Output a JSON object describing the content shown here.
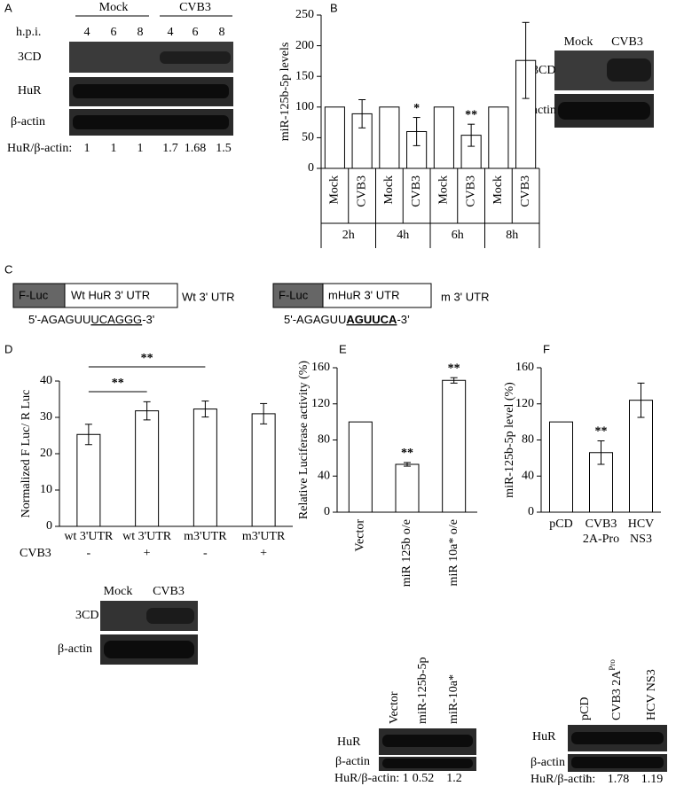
{
  "panels": [
    "A",
    "B",
    "C",
    "D",
    "E",
    "F"
  ],
  "blots": {
    "a": {
      "groups": [
        "Mock",
        "CVB3"
      ],
      "hpi": "h.p.i.",
      "lanes": [
        "4",
        "6",
        "8",
        "4",
        "6",
        "8"
      ],
      "rows": [
        "3CD",
        "HuR",
        "β-actin"
      ],
      "ratio_label": "HuR/β-actin:",
      "ratios": [
        "1",
        "1",
        "1",
        "1.7",
        "1.68",
        "1.5"
      ]
    },
    "b": {
      "lanes": [
        "Mock",
        "CVB3"
      ],
      "rows": [
        "3CD",
        "β-actin"
      ]
    },
    "d": {
      "lanes": [
        "Mock",
        "CVB3"
      ],
      "rows": [
        "3CD",
        "β-actin"
      ]
    },
    "e": {
      "lanes": [
        "Vector",
        "miR-125b-5p",
        "miR-10a*"
      ],
      "rows": [
        "HuR",
        "β-actin"
      ],
      "ratio_label": "HuR/β-actin: 1",
      "ratios": [
        "0.52",
        "1.2"
      ]
    },
    "f": {
      "lanes": [
        "pCD",
        "CVB3 2A",
        "HCV NS3"
      ],
      "lane_superscript": "Pro",
      "rows": [
        "HuR",
        "β-actin"
      ],
      "ratio_label": "HuR/β-actin:",
      "ratios": [
        "1",
        "1.78",
        "1.19"
      ]
    }
  },
  "constructs": [
    {
      "luc": "F-Luc",
      "utr": "Wt HuR  3' UTR",
      "name": "Wt 3' UTR",
      "seq_start": "5'-AGAGUU",
      "seq_site": "UCAGGG",
      "seq_end": "-3'"
    },
    {
      "luc": "F-Luc",
      "utr": "mHuR 3' UTR",
      "name": "m 3' UTR",
      "seq_start": "5'-AGAGUU",
      "seq_site": "AGUUCA",
      "seq_end": "-3’"
    }
  ],
  "chart_data": [
    {
      "type": "bar",
      "ylabel": "miR-125b-5p levels",
      "categories": [
        "Mock",
        "CVB3",
        "Mock",
        "CVB3",
        "Mock",
        "CVB3",
        "Mock",
        "CVB3"
      ],
      "groups": [
        "2h",
        "4h",
        "6h",
        "8h"
      ],
      "values": [
        100,
        89,
        100,
        60,
        100,
        54,
        100,
        176
      ],
      "errors": [
        0,
        23,
        0,
        23,
        0,
        18,
        0,
        62
      ],
      "significance": [
        null,
        null,
        null,
        "*",
        null,
        "**",
        null,
        null
      ],
      "color": "#ffffff",
      "ylim": [
        0,
        250
      ],
      "yticks": [
        0,
        50,
        100,
        150,
        200,
        250
      ]
    },
    {
      "type": "bar",
      "ylabel": "Normalized F Luc/ R Luc",
      "categories": [
        "wt 3'UTR",
        "wt 3'UTR",
        "m3'UTR",
        "m3'UTR"
      ],
      "row_label": "CVB3",
      "row": [
        "-",
        "+",
        "-",
        "+"
      ],
      "values": [
        25.3,
        31.8,
        32.3,
        31.0
      ],
      "errors": [
        2.8,
        2.5,
        2.2,
        2.8
      ],
      "brackets": [
        {
          "from": 0,
          "to": 2,
          "text": "**"
        },
        {
          "from": 0,
          "to": 1,
          "text": "**"
        }
      ],
      "color": "#ffffff",
      "ylim": [
        0,
        40
      ],
      "yticks": [
        0,
        10,
        20,
        30,
        40
      ]
    },
    {
      "type": "bar",
      "ylabel": "Relative Luciferase activity (%)",
      "categories": [
        "Vector",
        "miR 125b o/e",
        "miR 10a* o/e"
      ],
      "values": [
        100,
        53,
        146
      ],
      "errors": [
        0,
        2,
        3
      ],
      "significance": [
        null,
        "**",
        "**"
      ],
      "color": "#ffffff",
      "ylim": [
        0,
        160
      ],
      "yticks": [
        0,
        40,
        80,
        120,
        160
      ]
    },
    {
      "type": "bar",
      "ylabel": "miR-125b-5p level (%)",
      "categories": [
        [
          "pCD"
        ],
        [
          "CVB3",
          "2A-Pro"
        ],
        [
          "HCV",
          "NS3"
        ]
      ],
      "values": [
        100,
        66,
        124
      ],
      "errors": [
        0,
        13,
        19
      ],
      "significance": [
        null,
        "**",
        null
      ],
      "color": "#ffffff",
      "ylim": [
        0,
        160
      ],
      "yticks": [
        0,
        40,
        80,
        120,
        160
      ]
    }
  ]
}
